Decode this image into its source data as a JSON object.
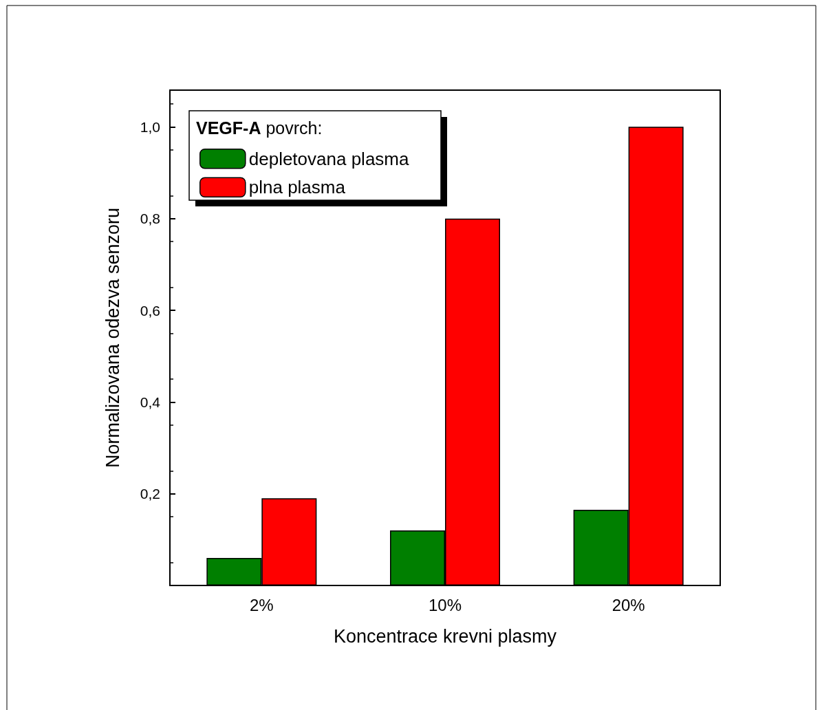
{
  "chart_data": {
    "type": "bar",
    "xlabel": "Koncentrace krevni plasmy",
    "ylabel": "Normalizovana odezva senzoru",
    "legend_title": "VEGF-A povrch:",
    "categories": [
      "2%",
      "10%",
      "20%"
    ],
    "series": [
      {
        "name": "depletovana plasma",
        "color": "#007f00",
        "values": [
          0.06,
          0.12,
          0.165
        ]
      },
      {
        "name": "plna plasma",
        "color": "#ff0000",
        "values": [
          0.19,
          0.8,
          1.0
        ]
      }
    ],
    "ylim": [
      0,
      1.08
    ],
    "yticks": [
      {
        "value": 0.2,
        "label": "0,2"
      },
      {
        "value": 0.4,
        "label": "0,4"
      },
      {
        "value": 0.6,
        "label": "0,6"
      },
      {
        "value": 0.8,
        "label": "0,8"
      },
      {
        "value": 1.0,
        "label": "1,0"
      }
    ],
    "grid": false,
    "legend": "top left"
  }
}
